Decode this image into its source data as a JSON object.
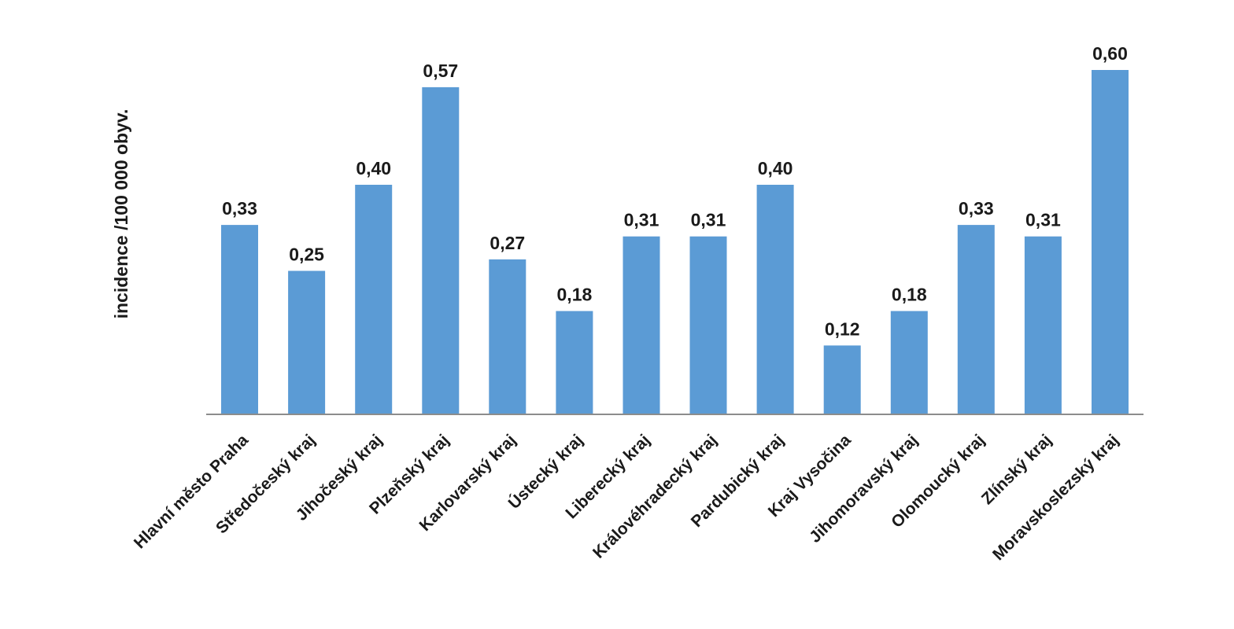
{
  "chart_data": {
    "type": "bar",
    "title": "",
    "xlabel": "",
    "ylabel": "incidence /100 000 obyv.",
    "categories": [
      "Hlavní město Praha",
      "Středočeský kraj",
      "Jihočeský kraj",
      "Plzeňský kraj",
      "Karlovarský kraj",
      "Ústecký kraj",
      "Liberecký kraj",
      "Královéhradecký kraj",
      "Pardubický kraj",
      "Kraj Vysočina",
      "Jihomoravský kraj",
      "Olomoucký kraj",
      "Zlínský kraj",
      "Moravskoslezský kraj"
    ],
    "values": [
      0.33,
      0.25,
      0.4,
      0.57,
      0.27,
      0.18,
      0.31,
      0.31,
      0.4,
      0.12,
      0.18,
      0.33,
      0.31,
      0.6
    ],
    "value_labels": [
      "0,33",
      "0,25",
      "0,40",
      "0,57",
      "0,27",
      "0,18",
      "0,31",
      "0,31",
      "0,40",
      "0,12",
      "0,18",
      "0,33",
      "0,31",
      "0,60"
    ],
    "ylim": [
      0,
      0.6
    ],
    "grid": false,
    "legend": "none",
    "bar_color": "#5b9bd5",
    "axis_color": "#8c8c8c",
    "text_color": "#1a1a1a"
  }
}
